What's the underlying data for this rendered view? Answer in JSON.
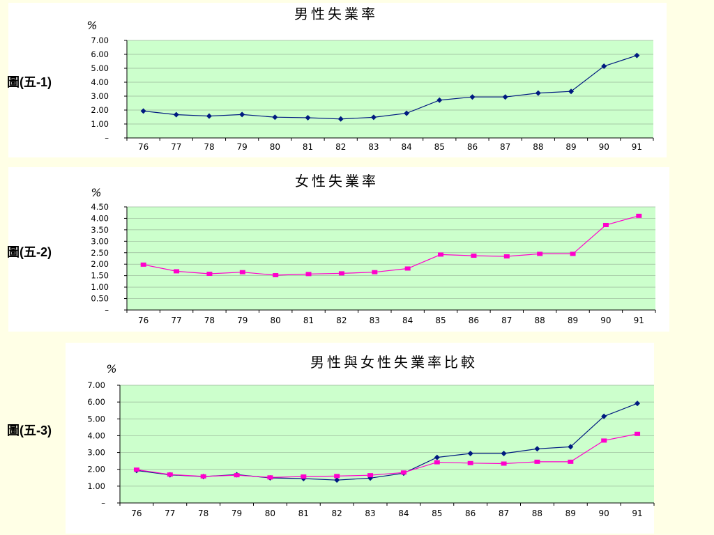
{
  "figure_labels": [
    "圖(五-1)",
    "圖(五-2)",
    "圖(五-3)"
  ],
  "colors": {
    "male": "#001a80",
    "female": "#ff00cc",
    "plot_bg": "#ccffcc",
    "page_bg": "#ffffe6"
  },
  "chart_data": [
    {
      "type": "line",
      "title": "男性失業率",
      "ylabel": "%",
      "categories": [
        "76",
        "77",
        "78",
        "79",
        "80",
        "81",
        "82",
        "83",
        "84",
        "85",
        "86",
        "87",
        "88",
        "89",
        "90",
        "91"
      ],
      "ylim": [
        0,
        7
      ],
      "yticks": [
        "–",
        "1.00",
        "2.00",
        "3.00",
        "4.00",
        "5.00",
        "6.00",
        "7.00"
      ],
      "grid": true,
      "series": [
        {
          "color": "#001a80",
          "marker": "diamond",
          "values": [
            1.93,
            1.67,
            1.57,
            1.68,
            1.49,
            1.45,
            1.36,
            1.48,
            1.77,
            2.71,
            2.94,
            2.94,
            3.22,
            3.34,
            5.15,
            5.92
          ]
        }
      ]
    },
    {
      "type": "line",
      "title": "女性失業率",
      "ylabel": "%",
      "categories": [
        "76",
        "77",
        "78",
        "79",
        "80",
        "81",
        "82",
        "83",
        "84",
        "85",
        "86",
        "87",
        "88",
        "89",
        "90",
        "91"
      ],
      "ylim": [
        0,
        4.5
      ],
      "yticks": [
        "–",
        "0.50",
        "1.00",
        "1.50",
        "2.00",
        "2.50",
        "3.00",
        "3.50",
        "4.00",
        "4.50"
      ],
      "grid": true,
      "series": [
        {
          "color": "#ff00cc",
          "marker": "square",
          "values": [
            1.98,
            1.69,
            1.58,
            1.65,
            1.52,
            1.57,
            1.6,
            1.65,
            1.81,
            2.42,
            2.37,
            2.34,
            2.45,
            2.45,
            3.71,
            4.11
          ]
        }
      ]
    },
    {
      "type": "line",
      "title": "男性與女性失業率比較",
      "ylabel": "%",
      "categories": [
        "76",
        "77",
        "78",
        "79",
        "80",
        "81",
        "82",
        "83",
        "84",
        "85",
        "86",
        "87",
        "88",
        "89",
        "90",
        "91"
      ],
      "ylim": [
        0,
        7
      ],
      "yticks": [
        "–",
        "1.00",
        "2.00",
        "3.00",
        "4.00",
        "5.00",
        "6.00",
        "7.00"
      ],
      "grid": true,
      "series": [
        {
          "color": "#001a80",
          "marker": "diamond",
          "values": [
            1.93,
            1.67,
            1.57,
            1.68,
            1.49,
            1.45,
            1.36,
            1.48,
            1.77,
            2.71,
            2.94,
            2.94,
            3.22,
            3.34,
            5.15,
            5.92
          ]
        },
        {
          "color": "#ff00cc",
          "marker": "square",
          "values": [
            1.98,
            1.69,
            1.58,
            1.65,
            1.52,
            1.57,
            1.6,
            1.65,
            1.81,
            2.42,
            2.37,
            2.34,
            2.45,
            2.45,
            3.71,
            4.11
          ]
        }
      ]
    }
  ]
}
